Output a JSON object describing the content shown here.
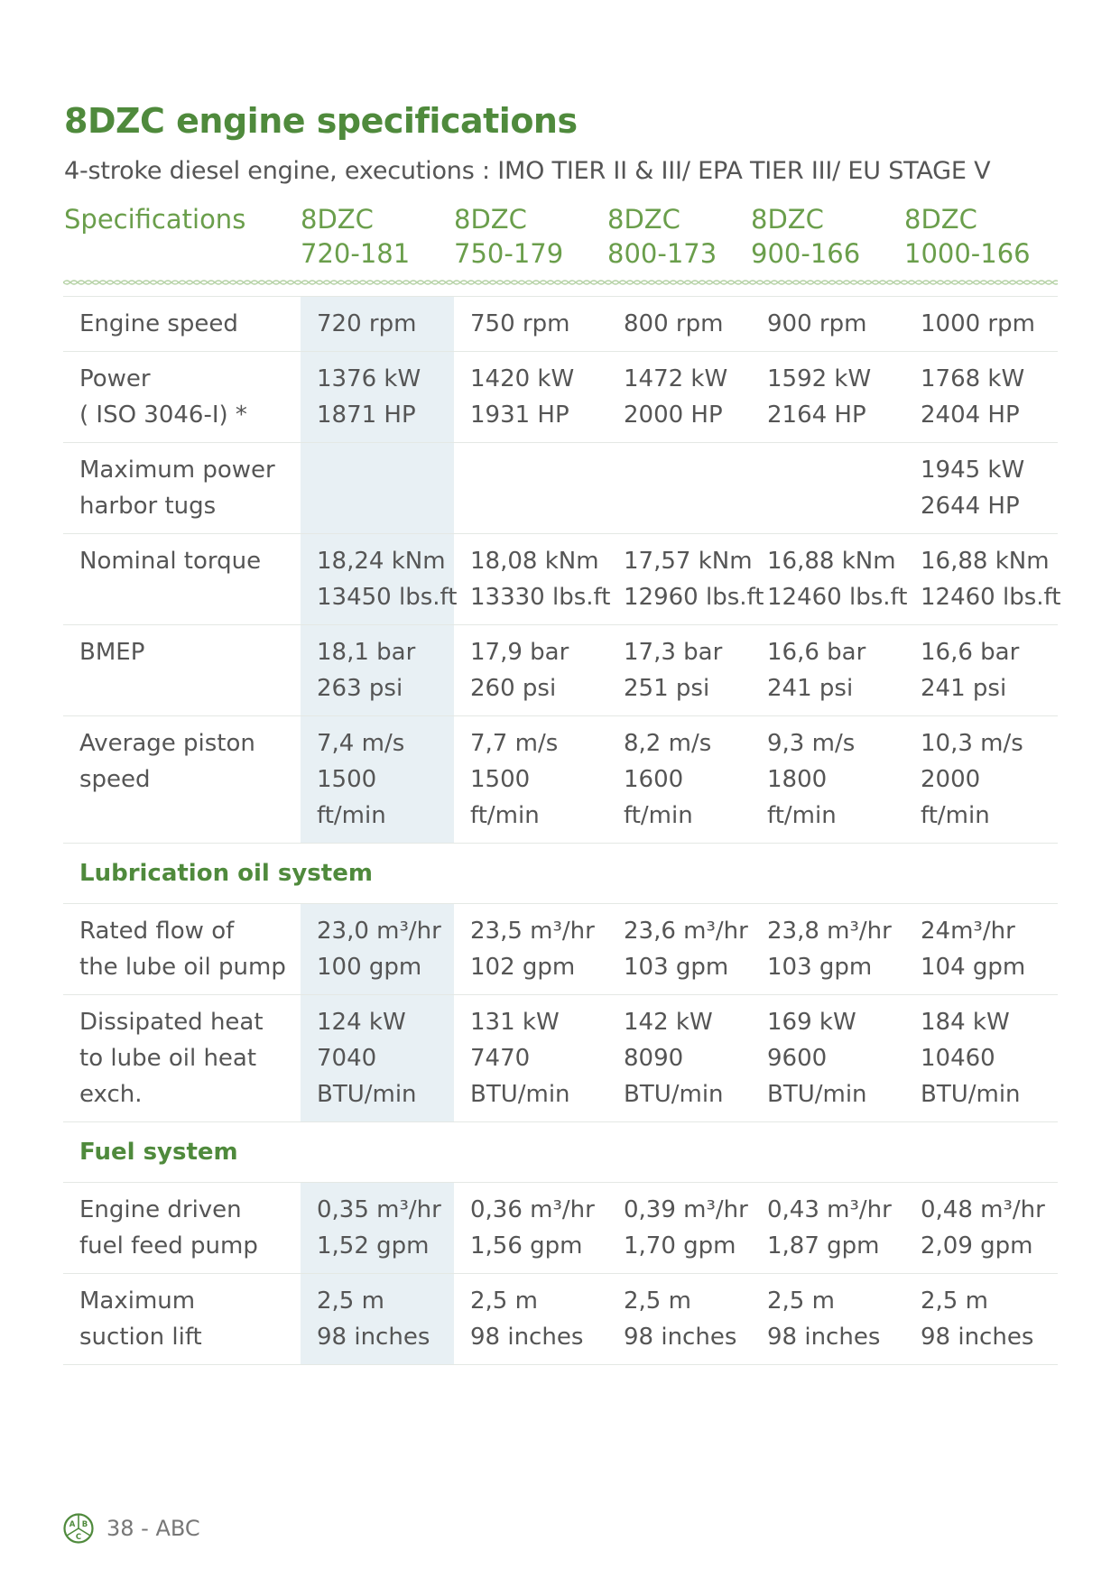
{
  "title": "8DZC engine specifications",
  "subtitle": "4-stroke diesel engine, executions : IMO TIER II & III/ EPA TIER III/ EU STAGE V",
  "header": {
    "label": "Specifications",
    "models": [
      [
        "8DZC",
        "720-181"
      ],
      [
        "8DZC",
        "750-179"
      ],
      [
        "8DZC",
        "800-173"
      ],
      [
        "8DZC",
        "900-166"
      ],
      [
        "8DZC",
        "1000-166"
      ]
    ]
  },
  "rows": [
    {
      "type": "row",
      "label": [
        "Engine speed"
      ],
      "values": [
        [
          "720 rpm"
        ],
        [
          "750 rpm"
        ],
        [
          "800 rpm"
        ],
        [
          "900 rpm"
        ],
        [
          "1000 rpm"
        ]
      ]
    },
    {
      "type": "row",
      "label": [
        "Power",
        "( ISO 3046-I) *"
      ],
      "values": [
        [
          "1376 kW",
          "1871 HP"
        ],
        [
          "1420 kW",
          "1931 HP"
        ],
        [
          "1472 kW",
          "2000 HP"
        ],
        [
          "1592 kW",
          "2164 HP"
        ],
        [
          "1768 kW",
          "2404 HP"
        ]
      ]
    },
    {
      "type": "row",
      "label": [
        "Maximum power",
        "harbor tugs"
      ],
      "values": [
        [],
        [],
        [],
        [],
        [
          "1945 kW",
          "2644 HP"
        ]
      ]
    },
    {
      "type": "row",
      "label": [
        "Nominal torque"
      ],
      "values": [
        [
          "18,24 kNm",
          "13450 lbs.ft"
        ],
        [
          "18,08 kNm",
          "13330 lbs.ft"
        ],
        [
          "17,57 kNm",
          "12960 lbs.ft"
        ],
        [
          "16,88 kNm",
          "12460 lbs.ft"
        ],
        [
          "16,88 kNm",
          "12460 lbs.ft"
        ]
      ]
    },
    {
      "type": "row",
      "label": [
        "BMEP"
      ],
      "values": [
        [
          "18,1 bar",
          "263 psi"
        ],
        [
          "17,9 bar",
          "260 psi"
        ],
        [
          "17,3 bar",
          "251 psi"
        ],
        [
          "16,6 bar",
          "241 psi"
        ],
        [
          "16,6 bar",
          "241 psi"
        ]
      ]
    },
    {
      "type": "row",
      "label": [
        "Average piston",
        "speed"
      ],
      "values": [
        [
          "7,4 m/s",
          "1500",
          "ft/min"
        ],
        [
          "7,7 m/s",
          "1500",
          "ft/min"
        ],
        [
          "8,2 m/s",
          "1600",
          "ft/min"
        ],
        [
          "9,3 m/s",
          "1800",
          "ft/min"
        ],
        [
          "10,3 m/s",
          "2000",
          "ft/min"
        ]
      ]
    },
    {
      "type": "section",
      "label": "Lubrication oil system"
    },
    {
      "type": "row",
      "label": [
        "Rated flow of",
        "the lube oil pump"
      ],
      "values": [
        [
          "23,0 m³/hr",
          "100 gpm"
        ],
        [
          "23,5 m³/hr",
          "102 gpm"
        ],
        [
          "23,6 m³/hr",
          "103 gpm"
        ],
        [
          "23,8 m³/hr",
          "103 gpm"
        ],
        [
          "24m³/hr",
          "104 gpm"
        ]
      ]
    },
    {
      "type": "row",
      "label": [
        "Dissipated heat",
        "to lube oil heat",
        "exch."
      ],
      "values": [
        [
          "124 kW",
          "7040",
          "BTU/min"
        ],
        [
          "131 kW",
          "7470",
          "BTU/min"
        ],
        [
          "142 kW",
          "8090",
          "BTU/min"
        ],
        [
          "169 kW",
          "9600",
          "BTU/min"
        ],
        [
          "184 kW",
          "10460",
          "BTU/min"
        ]
      ]
    },
    {
      "type": "section",
      "label": "Fuel system"
    },
    {
      "type": "row",
      "label": [
        "Engine driven",
        "fuel feed pump"
      ],
      "values": [
        [
          "0,35 m³/hr",
          "1,52 gpm"
        ],
        [
          "0,36 m³/hr",
          "1,56 gpm"
        ],
        [
          "0,39 m³/hr",
          "1,70 gpm"
        ],
        [
          "0,43 m³/hr",
          "1,87 gpm"
        ],
        [
          "0,48 m³/hr",
          "2,09 gpm"
        ]
      ]
    },
    {
      "type": "row",
      "label": [
        "Maximum",
        "suction lift"
      ],
      "values": [
        [
          "2,5 m",
          "98 inches"
        ],
        [
          "2,5 m",
          "98 inches"
        ],
        [
          "2,5 m",
          "98 inches"
        ],
        [
          "2,5 m",
          "98 inches"
        ],
        [
          "2,5 m",
          "98 inches"
        ]
      ]
    }
  ],
  "footer": {
    "page": "38 - ABC",
    "logo_letters": [
      "A",
      "B",
      "C"
    ]
  },
  "colors": {
    "green": "#4f8a3c",
    "light_green": "#6a9e4b",
    "highlight": "#e8f0f4",
    "text": "#555555"
  }
}
